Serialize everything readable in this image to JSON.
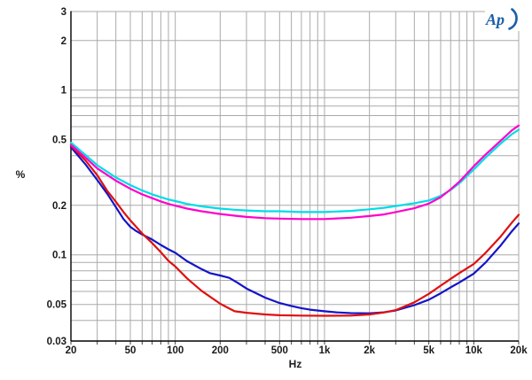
{
  "logo": {
    "text": "Ap",
    "color": "#1a5fa8"
  },
  "chart_data": {
    "type": "line",
    "title": "",
    "xlabel": "Hz",
    "ylabel": "%",
    "x_scale": "log",
    "y_scale": "log",
    "xlim": [
      20,
      20000
    ],
    "ylim": [
      0.03,
      3
    ],
    "grid": true,
    "grid_color": "#aaaaaa",
    "frame_color": "#000000",
    "tick_label_color": "#1a1a1a",
    "x_ticks": [
      {
        "v": 20,
        "label": "20"
      },
      {
        "v": 50,
        "label": "50"
      },
      {
        "v": 100,
        "label": "100"
      },
      {
        "v": 200,
        "label": "200"
      },
      {
        "v": 500,
        "label": "500"
      },
      {
        "v": 1000,
        "label": "1k"
      },
      {
        "v": 2000,
        "label": "2k"
      },
      {
        "v": 5000,
        "label": "5k"
      },
      {
        "v": 10000,
        "label": "10k"
      },
      {
        "v": 20000,
        "label": "20k"
      }
    ],
    "y_ticks": [
      {
        "v": 3,
        "label": "3"
      },
      {
        "v": 2,
        "label": "2"
      },
      {
        "v": 1,
        "label": "1"
      },
      {
        "v": 0.5,
        "label": "0.5"
      },
      {
        "v": 0.2,
        "label": "0.2"
      },
      {
        "v": 0.1,
        "label": "0.1"
      },
      {
        "v": 0.05,
        "label": "0.05"
      },
      {
        "v": 0.03,
        "label": "0.03"
      }
    ],
    "legend": "none",
    "series": [
      {
        "name": "cyan-trace",
        "color": "#00dce8",
        "points": [
          [
            20,
            0.48
          ],
          [
            25,
            0.405
          ],
          [
            30,
            0.35
          ],
          [
            40,
            0.295
          ],
          [
            50,
            0.265
          ],
          [
            60,
            0.246
          ],
          [
            70,
            0.233
          ],
          [
            80,
            0.224
          ],
          [
            90,
            0.217
          ],
          [
            100,
            0.212
          ],
          [
            120,
            0.204
          ],
          [
            150,
            0.197
          ],
          [
            200,
            0.191
          ],
          [
            250,
            0.188
          ],
          [
            300,
            0.186
          ],
          [
            400,
            0.184
          ],
          [
            500,
            0.184
          ],
          [
            700,
            0.182
          ],
          [
            1000,
            0.182
          ],
          [
            1500,
            0.185
          ],
          [
            2000,
            0.189
          ],
          [
            2500,
            0.193
          ],
          [
            3000,
            0.198
          ],
          [
            4000,
            0.206
          ],
          [
            5000,
            0.214
          ],
          [
            6000,
            0.228
          ],
          [
            7000,
            0.248
          ],
          [
            8000,
            0.272
          ],
          [
            10000,
            0.33
          ],
          [
            12000,
            0.39
          ],
          [
            15000,
            0.47
          ],
          [
            18000,
            0.54
          ],
          [
            20000,
            0.575
          ]
        ]
      },
      {
        "name": "blue-trace",
        "color": "#1414c8",
        "points": [
          [
            20,
            0.45
          ],
          [
            25,
            0.355
          ],
          [
            30,
            0.285
          ],
          [
            35,
            0.235
          ],
          [
            40,
            0.195
          ],
          [
            45,
            0.165
          ],
          [
            50,
            0.148
          ],
          [
            55,
            0.139
          ],
          [
            60,
            0.133
          ],
          [
            70,
            0.124
          ],
          [
            80,
            0.115
          ],
          [
            90,
            0.108
          ],
          [
            100,
            0.103
          ],
          [
            120,
            0.0915
          ],
          [
            150,
            0.082
          ],
          [
            170,
            0.0775
          ],
          [
            200,
            0.075
          ],
          [
            230,
            0.0725
          ],
          [
            260,
            0.068
          ],
          [
            300,
            0.0625
          ],
          [
            400,
            0.055
          ],
          [
            500,
            0.051
          ],
          [
            600,
            0.049
          ],
          [
            700,
            0.0475
          ],
          [
            800,
            0.0465
          ],
          [
            1000,
            0.0455
          ],
          [
            1200,
            0.0448
          ],
          [
            1500,
            0.0443
          ],
          [
            2000,
            0.0442
          ],
          [
            2500,
            0.0448
          ],
          [
            3000,
            0.046
          ],
          [
            4000,
            0.0495
          ],
          [
            5000,
            0.0535
          ],
          [
            6000,
            0.0585
          ],
          [
            7000,
            0.0635
          ],
          [
            8000,
            0.068
          ],
          [
            10000,
            0.077
          ],
          [
            12000,
            0.09
          ],
          [
            15000,
            0.113
          ],
          [
            18000,
            0.139
          ],
          [
            20000,
            0.155
          ]
        ]
      },
      {
        "name": "red-trace",
        "color": "#e01010",
        "points": [
          [
            20,
            0.46
          ],
          [
            25,
            0.375
          ],
          [
            30,
            0.305
          ],
          [
            35,
            0.245
          ],
          [
            40,
            0.21
          ],
          [
            45,
            0.182
          ],
          [
            50,
            0.162
          ],
          [
            60,
            0.135
          ],
          [
            70,
            0.118
          ],
          [
            80,
            0.104
          ],
          [
            90,
            0.092
          ],
          [
            100,
            0.085
          ],
          [
            120,
            0.072
          ],
          [
            150,
            0.0605
          ],
          [
            200,
            0.0505
          ],
          [
            250,
            0.0455
          ],
          [
            300,
            0.0445
          ],
          [
            400,
            0.0435
          ],
          [
            500,
            0.043
          ],
          [
            700,
            0.0428
          ],
          [
            1000,
            0.0427
          ],
          [
            1500,
            0.0428
          ],
          [
            2000,
            0.0435
          ],
          [
            2500,
            0.0447
          ],
          [
            3000,
            0.0462
          ],
          [
            4000,
            0.0515
          ],
          [
            5000,
            0.058
          ],
          [
            6000,
            0.065
          ],
          [
            7000,
            0.0715
          ],
          [
            8000,
            0.0775
          ],
          [
            10000,
            0.088
          ],
          [
            12000,
            0.103
          ],
          [
            15000,
            0.128
          ],
          [
            18000,
            0.157
          ],
          [
            20000,
            0.175
          ]
        ]
      },
      {
        "name": "magenta-trace",
        "color": "#ff00cc",
        "points": [
          [
            20,
            0.465
          ],
          [
            25,
            0.39
          ],
          [
            30,
            0.335
          ],
          [
            40,
            0.282
          ],
          [
            50,
            0.252
          ],
          [
            60,
            0.233
          ],
          [
            70,
            0.221
          ],
          [
            80,
            0.211
          ],
          [
            90,
            0.204
          ],
          [
            100,
            0.199
          ],
          [
            120,
            0.191
          ],
          [
            150,
            0.184
          ],
          [
            200,
            0.177
          ],
          [
            250,
            0.173
          ],
          [
            300,
            0.17
          ],
          [
            400,
            0.167
          ],
          [
            500,
            0.166
          ],
          [
            700,
            0.165
          ],
          [
            1000,
            0.165
          ],
          [
            1500,
            0.168
          ],
          [
            2000,
            0.172
          ],
          [
            2500,
            0.176
          ],
          [
            3000,
            0.182
          ],
          [
            4000,
            0.192
          ],
          [
            5000,
            0.205
          ],
          [
            6000,
            0.224
          ],
          [
            7000,
            0.25
          ],
          [
            8000,
            0.278
          ],
          [
            10000,
            0.345
          ],
          [
            12000,
            0.407
          ],
          [
            15000,
            0.49
          ],
          [
            18000,
            0.57
          ],
          [
            20000,
            0.61
          ]
        ]
      }
    ]
  }
}
